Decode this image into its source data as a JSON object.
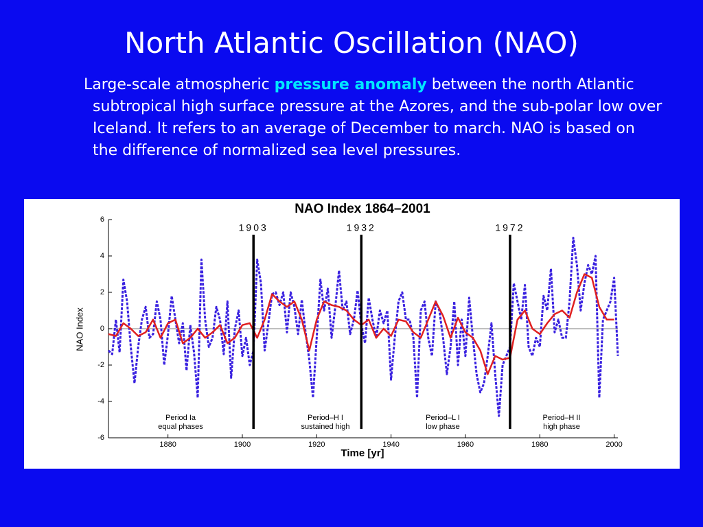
{
  "slide": {
    "title": "North Atlantic Oscillation (NAO)",
    "paragraph": [
      "Large-scale atmospheric ",
      "pressure anomaly",
      " between the north Atlantic subtropical high surface pressure at the Azores, and the sub-polar low over Iceland. It refers to an  average of December to march.  NAO is based on the difference of normalized sea level pressures."
    ]
  },
  "chart_data": {
    "type": "line",
    "title": "NAO Index 1864–2001",
    "x_label": "Time [yr]",
    "y_label": "NAO Index",
    "xlim": [
      1864,
      2001
    ],
    "ylim": [
      -6,
      6
    ],
    "xticks": [
      1880,
      1900,
      1920,
      1940,
      1960,
      1980,
      2000
    ],
    "yticks": [
      -6,
      -4,
      -2,
      0,
      2,
      4,
      6
    ],
    "zero_line": true,
    "markers": [
      1903,
      1932,
      1972
    ],
    "annotations": [
      [
        "Period Ia",
        "equal phases"
      ],
      [
        "Period–H I",
        "sustained high"
      ],
      [
        "Period–L I",
        "low phase"
      ],
      [
        "Period–H II",
        "high phase"
      ]
    ],
    "series": [
      {
        "color": "#3a22e0",
        "dashed": true,
        "x": [
          1864,
          1865,
          1866,
          1867,
          1868,
          1869,
          1870,
          1871,
          1872,
          1873,
          1874,
          1875,
          1876,
          1877,
          1878,
          1879,
          1880,
          1881,
          1882,
          1883,
          1884,
          1885,
          1886,
          1887,
          1888,
          1889,
          1890,
          1891,
          1892,
          1893,
          1894,
          1895,
          1896,
          1897,
          1898,
          1899,
          1900,
          1901,
          1902,
          1903,
          1904,
          1905,
          1906,
          1907,
          1908,
          1909,
          1910,
          1911,
          1912,
          1913,
          1914,
          1915,
          1916,
          1917,
          1918,
          1919,
          1920,
          1921,
          1922,
          1923,
          1924,
          1925,
          1926,
          1927,
          1928,
          1929,
          1930,
          1931,
          1932,
          1933,
          1934,
          1935,
          1936,
          1937,
          1938,
          1939,
          1940,
          1941,
          1942,
          1943,
          1944,
          1945,
          1946,
          1947,
          1948,
          1949,
          1950,
          1951,
          1952,
          1953,
          1954,
          1955,
          1956,
          1957,
          1958,
          1959,
          1960,
          1961,
          1962,
          1963,
          1964,
          1965,
          1966,
          1967,
          1968,
          1969,
          1970,
          1971,
          1972,
          1973,
          1974,
          1975,
          1976,
          1977,
          1978,
          1979,
          1980,
          1981,
          1982,
          1983,
          1984,
          1985,
          1986,
          1987,
          1988,
          1989,
          1990,
          1991,
          1992,
          1993,
          1994,
          1995,
          1996,
          1997,
          1998,
          1999,
          2000,
          2001
        ],
        "values": [
          -1.2,
          -1.4,
          0.5,
          -1.3,
          2.7,
          1.5,
          -1.0,
          -3.0,
          -1.0,
          0.5,
          1.2,
          -0.5,
          -0.3,
          1.5,
          0.5,
          -2.0,
          -0.3,
          1.8,
          0.5,
          -0.8,
          0.3,
          -2.3,
          0.2,
          -1.3,
          -3.8,
          3.8,
          0.5,
          -1.0,
          -0.5,
          1.2,
          0.5,
          -1.4,
          1.5,
          -2.7,
          0.0,
          1.0,
          -1.5,
          -0.5,
          -2.0,
          -1.2,
          3.8,
          2.5,
          -1.2,
          0.3,
          1.9,
          2.0,
          1.3,
          2.0,
          -0.2,
          2.0,
          1.2,
          -0.3,
          1.6,
          -0.2,
          -1.7,
          -3.8,
          -0.5,
          2.7,
          1.0,
          2.2,
          -0.5,
          1.2,
          3.2,
          1.0,
          1.5,
          -0.3,
          0.5,
          2.1,
          0.2,
          -0.8,
          1.7,
          0.5,
          -0.5,
          1.0,
          0.3,
          1.0,
          -2.8,
          -0.5,
          1.5,
          2.0,
          0.5,
          0.5,
          -0.5,
          -3.8,
          1.0,
          1.5,
          -0.5,
          -1.5,
          1.5,
          1.0,
          -0.5,
          -2.5,
          -1.0,
          1.5,
          -2.0,
          0.5,
          -1.5,
          1.7,
          -0.5,
          -2.5,
          -3.5,
          -3.0,
          -1.5,
          0.3,
          -2.5,
          -4.8,
          -2.0,
          -1.5,
          -1.0,
          2.5,
          1.5,
          0.5,
          2.4,
          -1.0,
          -1.5,
          -0.5,
          -1.0,
          1.8,
          1.0,
          3.3,
          -0.2,
          0.5,
          -0.5,
          -0.5,
          1.5,
          5.0,
          3.5,
          1.0,
          2.5,
          3.5,
          3.0,
          4.0,
          -3.8,
          0.5,
          1.0,
          1.5,
          2.8,
          -1.5
        ]
      },
      {
        "color": "#e02020",
        "dashed": false,
        "x": [
          1864,
          1866,
          1868,
          1870,
          1872,
          1874,
          1876,
          1878,
          1880,
          1882,
          1884,
          1886,
          1888,
          1890,
          1892,
          1894,
          1896,
          1898,
          1900,
          1902,
          1904,
          1906,
          1908,
          1910,
          1912,
          1914,
          1916,
          1918,
          1920,
          1922,
          1924,
          1926,
          1928,
          1930,
          1932,
          1934,
          1936,
          1938,
          1940,
          1942,
          1944,
          1946,
          1948,
          1950,
          1952,
          1954,
          1956,
          1958,
          1960,
          1962,
          1964,
          1966,
          1968,
          1970,
          1972,
          1974,
          1976,
          1978,
          1980,
          1982,
          1984,
          1986,
          1988,
          1990,
          1992,
          1994,
          1996,
          1998,
          2000
        ],
        "values": [
          -0.3,
          -0.4,
          0.3,
          0.0,
          -0.4,
          -0.2,
          0.5,
          -0.5,
          0.3,
          0.5,
          -0.8,
          -0.5,
          0.0,
          -0.5,
          -0.2,
          0.2,
          -0.8,
          -0.5,
          0.2,
          0.3,
          -0.5,
          0.5,
          1.9,
          1.5,
          1.2,
          1.5,
          0.5,
          -1.2,
          0.5,
          1.5,
          1.3,
          1.2,
          1.0,
          0.5,
          0.2,
          0.5,
          -0.5,
          0.0,
          -0.4,
          0.5,
          0.4,
          -0.2,
          -0.5,
          0.5,
          1.5,
          0.7,
          -0.5,
          0.6,
          -0.2,
          -0.5,
          -1.2,
          -2.5,
          -1.5,
          -1.7,
          -1.6,
          0.5,
          1.0,
          0.0,
          -0.3,
          0.3,
          0.8,
          1.0,
          0.6,
          2.0,
          3.0,
          2.8,
          1.2,
          0.5,
          0.5
        ]
      }
    ]
  }
}
